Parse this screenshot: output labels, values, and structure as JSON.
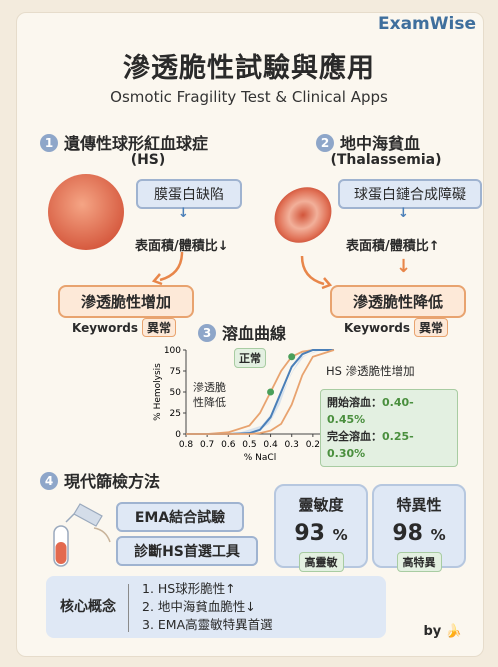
{
  "brand": "ExamWise",
  "title": "滲透脆性試驗與應用",
  "subtitle": "Osmotic Fragility Test & Clinical Apps",
  "hs": {
    "num": "1",
    "title": "遺傳性球形紅血球症",
    "abbr": "(HS)",
    "defect": "膜蛋白缺陷",
    "ratio": "表面積/體積比↓",
    "result": "滲透脆性增加",
    "kw_label": "Keywords",
    "kw_tag": "異常"
  },
  "thal": {
    "num": "2",
    "title": "地中海貧血",
    "abbr": "(Thalassemia)",
    "defect": "球蛋白鏈合成障礙",
    "ratio": "表面積/體積比↑",
    "result": "滲透脆性降低",
    "kw_label": "Keywords",
    "kw_tag": "異常"
  },
  "curve": {
    "num": "3",
    "title": "溶血曲線",
    "normal_label": "正常",
    "left_label": "滲透脆\n性降低",
    "right_label": "HS 滲透脆性增加",
    "note_start_label": "開始溶血：",
    "note_start_val": "0.40-0.45%",
    "note_full_label": "完全溶血：",
    "note_full_val": "0.25-0.30%"
  },
  "chart_data": {
    "type": "line",
    "xlabel": "% NaCl",
    "ylabel": "% Hemolysis",
    "x_ticks": [
      "0.8",
      "0.7",
      "0.6",
      "0.5",
      "0.4",
      "0.3",
      "0.2",
      "0.1"
    ],
    "y_ticks": [
      "0",
      "25",
      "50",
      "75",
      "100"
    ],
    "xlim": [
      0.8,
      0.1
    ],
    "ylim": [
      0,
      100
    ],
    "series": [
      {
        "name": "滲透脆性降低",
        "color": "#e8a36f",
        "x": [
          0.8,
          0.7,
          0.6,
          0.5,
          0.45,
          0.4,
          0.35,
          0.3,
          0.25,
          0.2,
          0.1
        ],
        "y": [
          0,
          0,
          2,
          10,
          25,
          50,
          75,
          92,
          98,
          100,
          100
        ]
      },
      {
        "name": "正常",
        "color": "#4a7fb8",
        "x": [
          0.8,
          0.7,
          0.6,
          0.5,
          0.45,
          0.4,
          0.35,
          0.3,
          0.25,
          0.2,
          0.1
        ],
        "y": [
          0,
          0,
          0,
          1,
          5,
          20,
          50,
          80,
          95,
          100,
          100
        ]
      },
      {
        "name": "HS 滲透脆性增加",
        "color": "#e8a36f",
        "x": [
          0.8,
          0.7,
          0.6,
          0.5,
          0.45,
          0.4,
          0.35,
          0.3,
          0.25,
          0.2,
          0.1
        ],
        "y": [
          0,
          0,
          0,
          0,
          1,
          4,
          12,
          35,
          70,
          92,
          100
        ]
      }
    ]
  },
  "screen": {
    "num": "4",
    "title": "現代篩檢方法",
    "ema": "EMA結合試驗",
    "first": "診斷HS首選工具",
    "sens_label": "靈敏度",
    "sens_val": "93",
    "sens_unit": "%",
    "sens_tag": "高靈敏",
    "spec_label": "特異性",
    "spec_val": "98",
    "spec_unit": "%",
    "spec_tag": "高特異"
  },
  "core": {
    "title": "核心概念",
    "points": [
      "1. HS球形脆性↑",
      "2. 地中海貧血脆性↓",
      "3. EMA高靈敏特異首選"
    ]
  },
  "by": "by"
}
